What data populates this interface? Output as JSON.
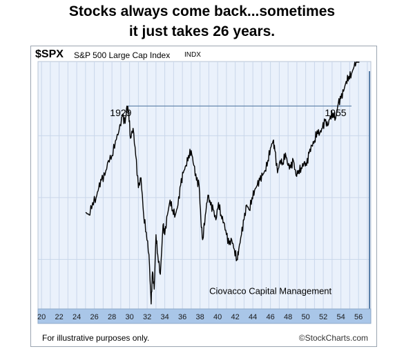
{
  "headline": {
    "line1": "Stocks always come back...sometimes",
    "line2": "it just takes 26 years."
  },
  "ticker": {
    "symbol": "$SPX",
    "description": "S&P 500 Large Cap Index",
    "exchange": "INDX"
  },
  "footer": {
    "disclaimer": "For illustrative purposes only.",
    "source": "©StockCharts.com"
  },
  "colors": {
    "plot_bg": "#eaf1fb",
    "grid": "#c9d6ea",
    "axis_band": "#a9c6e8",
    "line": "#000000",
    "reference_line": "#5a7fa8"
  },
  "chart_data": {
    "type": "line",
    "title": "Stocks always come back...sometimes it just takes 26 years.",
    "xlabel": "",
    "ylabel": "",
    "x_ticks": [
      "20",
      "22",
      "24",
      "26",
      "28",
      "30",
      "32",
      "34",
      "36",
      "38",
      "40",
      "42",
      "44",
      "46",
      "48",
      "50",
      "52",
      "54",
      "56"
    ],
    "xlim": [
      1919.6,
      1957.4
    ],
    "ylim": [
      0,
      100
    ],
    "grid": true,
    "reference_line": {
      "from_x": 1929.7,
      "to_x": 1955.2,
      "y": 82
    },
    "annotations": [
      {
        "text": "1929",
        "x": 1929.0,
        "y": 78
      },
      {
        "text": "1955",
        "x": 1953.4,
        "y": 78
      },
      {
        "text": "Ciovacco Capital Management",
        "x": 1946.0,
        "y": 6
      }
    ],
    "series": [
      {
        "name": "",
        "x": [
          1925.0,
          1925.4,
          1925.8,
          1926.2,
          1926.5,
          1926.8,
          1927.2,
          1927.6,
          1928.0,
          1928.4,
          1928.8,
          1929.2,
          1929.5,
          1929.7,
          1929.9,
          1930.1,
          1930.4,
          1930.7,
          1931.0,
          1931.3,
          1931.6,
          1931.9,
          1932.2,
          1932.45,
          1932.6,
          1932.8,
          1933.0,
          1933.2,
          1933.5,
          1933.8,
          1934.0,
          1934.3,
          1934.6,
          1934.9,
          1935.2,
          1935.5,
          1935.8,
          1936.1,
          1936.4,
          1936.7,
          1937.0,
          1937.3,
          1937.6,
          1937.9,
          1938.1,
          1938.3,
          1938.6,
          1938.9,
          1939.2,
          1939.5,
          1939.8,
          1940.1,
          1940.4,
          1940.7,
          1941.0,
          1941.3,
          1941.6,
          1941.9,
          1942.2,
          1942.4,
          1942.7,
          1943.0,
          1943.3,
          1943.6,
          1943.9,
          1944.2,
          1944.5,
          1944.8,
          1945.1,
          1945.4,
          1945.7,
          1946.0,
          1946.3,
          1946.5,
          1946.8,
          1947.1,
          1947.4,
          1947.7,
          1948.0,
          1948.3,
          1948.6,
          1948.9,
          1949.2,
          1949.5,
          1949.8,
          1950.1,
          1950.4,
          1950.7,
          1951.0,
          1951.3,
          1951.6,
          1951.9,
          1952.2,
          1952.5,
          1952.8,
          1953.1,
          1953.4,
          1953.7,
          1954.0,
          1954.3,
          1954.6,
          1954.9,
          1955.2,
          1955.5,
          1955.8,
          1956.1
        ],
        "values": [
          39,
          38,
          43,
          45,
          49,
          52,
          54,
          60,
          62,
          68,
          72,
          78,
          75,
          82,
          80,
          69,
          73,
          62,
          49,
          53,
          38,
          31,
          22,
          2,
          15,
          8,
          30,
          22,
          14,
          34,
          30,
          38,
          44,
          40,
          38,
          42,
          50,
          55,
          58,
          62,
          64,
          58,
          52,
          50,
          36,
          28,
          38,
          46,
          42,
          40,
          36,
          43,
          38,
          35,
          30,
          26,
          28,
          24,
          20,
          24,
          30,
          36,
          42,
          40,
          45,
          48,
          50,
          52,
          54,
          56,
          60,
          65,
          68,
          64,
          55,
          60,
          59,
          63,
          58,
          57,
          60,
          54,
          56,
          57,
          59,
          58,
          63,
          66,
          68,
          72,
          71,
          73,
          76,
          74,
          78,
          79,
          77,
          83,
          85,
          88,
          92,
          94,
          95,
          98,
          101,
          104
        ]
      }
    ]
  }
}
